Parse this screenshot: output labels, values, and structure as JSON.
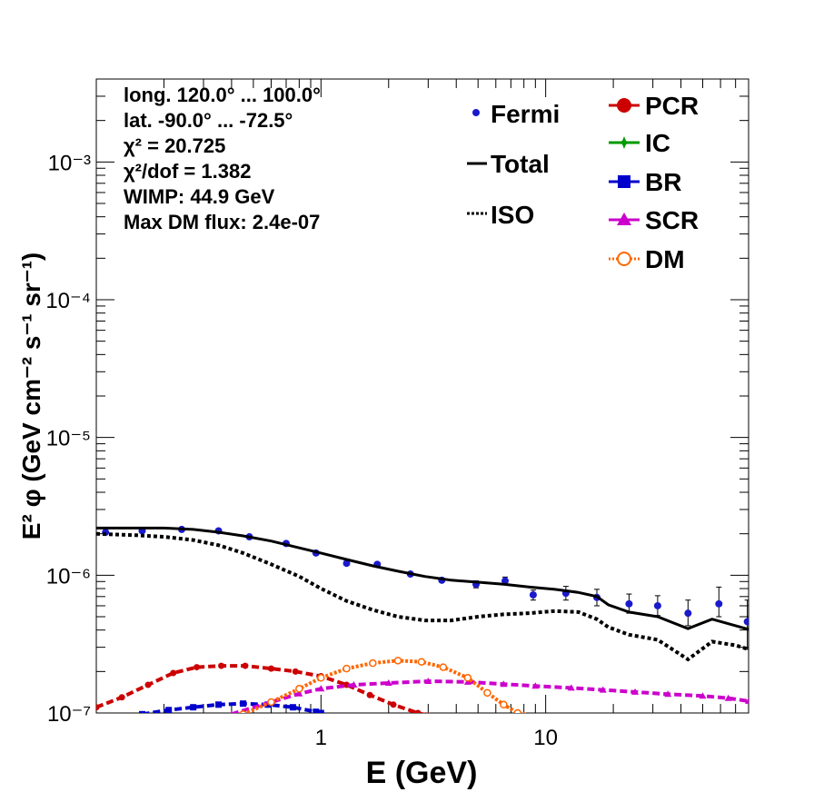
{
  "chart_data": {
    "type": "line",
    "xlabel": "E (GeV)",
    "ylabel": "E² φ (GeV cm⁻² s⁻¹ sr⁻¹)",
    "x_scale": "log",
    "y_scale": "log",
    "xlim": [
      0.1,
      80
    ],
    "ylim": [
      1e-07,
      0.004
    ],
    "x_tick_labels": [
      "1",
      "10"
    ],
    "x_tick_values": [
      1,
      10
    ],
    "y_tick_labels": [
      "10⁻⁷",
      "10⁻⁶",
      "10⁻⁵",
      "10⁻⁴",
      "10⁻³"
    ],
    "y_tick_values": [
      1e-07,
      1e-06,
      1e-05,
      0.0001,
      0.001
    ],
    "info_lines": [
      "long. 120.0° ... 100.0°",
      "lat. -90.0° ... -72.5°",
      "χ² = 20.725",
      "χ²/dof = 1.382",
      "WIMP: 44.9 GeV",
      "Max DM flux: 2.4e-07"
    ],
    "legend_left": [
      "Fermi",
      "Total",
      "ISO"
    ],
    "legend_right": [
      "PCR",
      "IC",
      "BR",
      "SCR",
      "DM"
    ],
    "series": [
      {
        "name": "Fermi",
        "style": "points-errorbars",
        "color": "#1a1acc",
        "x": [
          0.11,
          0.16,
          0.24,
          0.35,
          0.48,
          0.7,
          0.95,
          1.3,
          1.78,
          2.5,
          3.45,
          4.9,
          6.6,
          8.8,
          12.3,
          16.9,
          23.5,
          31.5,
          43.0,
          59.0,
          79.0
        ],
        "y": [
          2.05e-06,
          2.1e-06,
          2.15e-06,
          2.1e-06,
          1.9e-06,
          1.7e-06,
          1.45e-06,
          1.22e-06,
          1.2e-06,
          1.02e-06,
          9.2e-07,
          8.6e-07,
          9.1e-07,
          7.2e-07,
          7.4e-07,
          6.9e-07,
          6.2e-07,
          6e-07,
          5.3e-07,
          6.2e-07,
          4.6e-07
        ],
        "yerr_lo": [
          0,
          0,
          0,
          0,
          0,
          0,
          0,
          0,
          0,
          0,
          0,
          5e-08,
          6e-08,
          6e-08,
          8e-08,
          9e-08,
          9e-08,
          9e-08,
          1e-07,
          1.2e-07,
          1.7e-07
        ],
        "yerr_hi": [
          0,
          0,
          0,
          0,
          0,
          0,
          0,
          0,
          0,
          0,
          0,
          5e-08,
          6e-08,
          6e-08,
          9e-08,
          1e-07,
          1.1e-07,
          1.1e-07,
          1.3e-07,
          2e-07,
          2e-07
        ]
      },
      {
        "name": "Total",
        "style": "solid",
        "color": "#000000",
        "x": [
          0.1,
          0.15,
          0.2,
          0.27,
          0.35,
          0.45,
          0.6,
          0.8,
          1.0,
          1.3,
          1.7,
          2.2,
          2.9,
          3.8,
          5.0,
          6.5,
          8.5,
          11,
          14,
          16.9,
          19,
          23.5,
          31.5,
          43,
          55,
          80
        ],
        "y": [
          2.2e-06,
          2.2e-06,
          2.2e-06,
          2.15e-06,
          2.05e-06,
          1.93e-06,
          1.77e-06,
          1.58e-06,
          1.45e-06,
          1.3e-06,
          1.17e-06,
          1.07e-06,
          9.8e-07,
          9.2e-07,
          8.9e-07,
          8.6e-07,
          8.2e-07,
          7.9e-07,
          7.5e-07,
          7e-07,
          6.1e-07,
          5.4e-07,
          5e-07,
          4.1e-07,
          4.8e-07,
          4.05e-07
        ]
      },
      {
        "name": "ISO",
        "style": "dotted",
        "color": "#000000",
        "x": [
          0.1,
          0.15,
          0.2,
          0.27,
          0.35,
          0.45,
          0.6,
          0.8,
          1.0,
          1.3,
          1.7,
          2.2,
          2.9,
          3.8,
          5.0,
          6.5,
          8.5,
          11,
          14,
          16.9,
          19,
          23.5,
          31.5,
          43,
          55,
          70,
          80
        ],
        "y": [
          2e-06,
          1.95e-06,
          1.9e-06,
          1.8e-06,
          1.65e-06,
          1.45e-06,
          1.2e-06,
          9.8e-07,
          8e-07,
          6.5e-07,
          5.6e-07,
          5e-07,
          4.7e-07,
          4.7e-07,
          5e-07,
          5.2e-07,
          5.3e-07,
          5.5e-07,
          5.4e-07,
          4.8e-07,
          4.2e-07,
          3.7e-07,
          3.4e-07,
          2.45e-07,
          3.3e-07,
          3.1e-07,
          2.9e-07
        ]
      },
      {
        "name": "PCR",
        "style": "dashed-markers",
        "color": "#cc0000",
        "x": [
          0.1,
          0.13,
          0.17,
          0.22,
          0.28,
          0.36,
          0.46,
          0.6,
          0.77,
          1.0,
          1.3,
          1.65,
          2.1,
          2.7,
          3.0
        ],
        "y": [
          1.1e-07,
          1.3e-07,
          1.6e-07,
          1.95e-07,
          2.15e-07,
          2.2e-07,
          2.2e-07,
          2.1e-07,
          2e-07,
          1.85e-07,
          1.6e-07,
          1.35e-07,
          1.15e-07,
          1e-07,
          9.6e-08
        ]
      },
      {
        "name": "BR",
        "style": "dashed-markers",
        "color": "#0000cc",
        "x": [
          0.16,
          0.21,
          0.27,
          0.35,
          0.45,
          0.58,
          0.75,
          0.95,
          1.0
        ],
        "y": [
          9.8e-08,
          1.05e-07,
          1.1e-07,
          1.15e-07,
          1.17e-07,
          1.15e-07,
          1.1e-07,
          1.02e-07,
          1e-07
        ]
      },
      {
        "name": "SCR",
        "style": "dashed-markers",
        "color": "#cc00cc",
        "x": [
          0.4,
          0.6,
          0.8,
          1.0,
          1.4,
          2.0,
          3.0,
          4.5,
          6.5,
          9,
          13,
          18,
          25,
          35,
          50,
          65,
          80
        ],
        "y": [
          9.8e-08,
          1.2e-07,
          1.38e-07,
          1.5e-07,
          1.6e-07,
          1.65e-07,
          1.7e-07,
          1.68e-07,
          1.62e-07,
          1.57e-07,
          1.52e-07,
          1.47e-07,
          1.42e-07,
          1.37e-07,
          1.33e-07,
          1.28e-07,
          1.22e-07
        ]
      },
      {
        "name": "DM",
        "style": "dotted-open-circles",
        "color": "#ff6600",
        "x": [
          0.45,
          0.6,
          0.8,
          1.0,
          1.3,
          1.7,
          2.2,
          2.8,
          3.5,
          4.5,
          5.5,
          6.5,
          7.5,
          8.0
        ],
        "y": [
          9.8e-08,
          1.2e-07,
          1.5e-07,
          1.8e-07,
          2.1e-07,
          2.3e-07,
          2.4e-07,
          2.35e-07,
          2.15e-07,
          1.8e-07,
          1.4e-07,
          1.15e-07,
          1e-07,
          9.5e-08
        ]
      }
    ]
  }
}
